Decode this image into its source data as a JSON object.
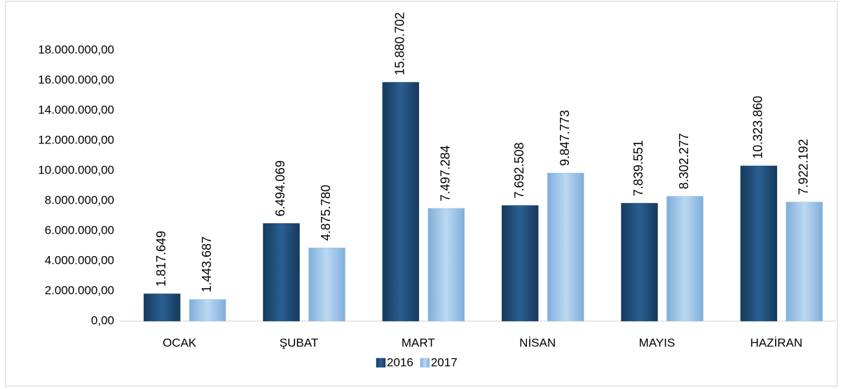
{
  "chart_data": {
    "type": "bar",
    "categories": [
      "OCAK",
      "ŞUBAT",
      "MART",
      "NİSAN",
      "MAYIS",
      "HAZİRAN"
    ],
    "series": [
      {
        "name": "2016",
        "color": "#1f4e79",
        "values": [
          1817649,
          6494069,
          15880702,
          7692508,
          7839551,
          10323860
        ],
        "value_labels": [
          "1.817.649",
          "6.494.069",
          "15.880.702",
          "7.692.508",
          "7.839.551",
          "10.323.860"
        ]
      },
      {
        "name": "2017",
        "color": "#9dc3e6",
        "values": [
          1443687,
          4875780,
          7497284,
          9847773,
          8302277,
          7922192
        ],
        "value_labels": [
          "1.443.687",
          "4.875.780",
          "7.497.284",
          "9.847.773",
          "8.302.277",
          "7.922.192"
        ]
      }
    ],
    "ylim": [
      0,
      18000000
    ],
    "yticks": [
      {
        "value": 0,
        "label": "0,00"
      },
      {
        "value": 2000000,
        "label": "2.000.000,00"
      },
      {
        "value": 4000000,
        "label": "4.000.000,00"
      },
      {
        "value": 6000000,
        "label": "6.000.000,00"
      },
      {
        "value": 8000000,
        "label": "8.000.000,00"
      },
      {
        "value": 10000000,
        "label": "10.000.000,00"
      },
      {
        "value": 12000000,
        "label": "12.000.000,00"
      },
      {
        "value": 14000000,
        "label": "14.000.000,00"
      },
      {
        "value": 16000000,
        "label": "16.000.000,00"
      },
      {
        "value": 18000000,
        "label": "18.000.000,00"
      }
    ],
    "legend": "bottom"
  }
}
